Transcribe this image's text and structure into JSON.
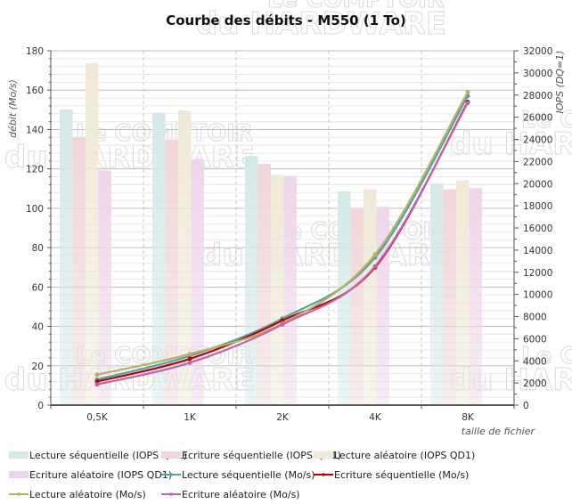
{
  "chart_data": {
    "type": "bar+line",
    "title": "Courbe des débits - M550 (1 To)",
    "xlabel": "taille de fichier",
    "ylabel": "débit (Mo/s)",
    "y2label": "IOPS (DQ=1)",
    "categories": [
      "0,5K",
      "1K",
      "2K",
      "4K",
      "8K"
    ],
    "ylim": [
      0,
      180
    ],
    "yticks": [
      0,
      20,
      40,
      60,
      80,
      100,
      120,
      140,
      160,
      180
    ],
    "y2lim": [
      0,
      32000
    ],
    "y2ticks": [
      0,
      2000,
      4000,
      6000,
      8000,
      10000,
      12000,
      14000,
      16000,
      18000,
      20000,
      22000,
      24000,
      26000,
      28000,
      30000,
      32000
    ],
    "grid": true,
    "legend": "bottom",
    "bar_series": [
      {
        "name": "Lecture séquentielle (IOPS QD1)",
        "axis": "right",
        "color": "#d3e9e8",
        "values": [
          26700,
          26400,
          22500,
          19300,
          20000
        ]
      },
      {
        "name": "Ecriture séquentielle (IOPS QD1)",
        "axis": "right",
        "color": "#f0d6d9",
        "values": [
          24200,
          24000,
          21800,
          17800,
          19500
        ]
      },
      {
        "name": "Lecture aléatoire (IOPS QD1)",
        "axis": "right",
        "color": "#eeead6",
        "values": [
          30900,
          26600,
          20800,
          19500,
          20300
        ]
      },
      {
        "name": "Ecriture aléatoire (IOPS QD1)",
        "axis": "right",
        "color": "#efd5eb",
        "values": [
          21200,
          22200,
          20700,
          17900,
          19600
        ]
      }
    ],
    "line_series": [
      {
        "name": "Lecture séquentielle (Mo/s)",
        "axis": "left",
        "color": "#4ea6a0",
        "values": [
          13,
          25,
          44,
          75,
          157
        ]
      },
      {
        "name": "Ecriture séquentielle (Mo/s)",
        "axis": "left",
        "color": "#c00000",
        "values": [
          12,
          23.5,
          43,
          70,
          154
        ]
      },
      {
        "name": "Lecture aléatoire (Mo/s)",
        "axis": "left",
        "color": "#b8b25c",
        "values": [
          15.5,
          26,
          41.5,
          76.5,
          159
        ]
      },
      {
        "name": "Ecriture aléatoire (Mo/s)",
        "axis": "left",
        "color": "#c461b4",
        "values": [
          10.5,
          21.5,
          41,
          70.5,
          153.5
        ]
      }
    ]
  },
  "watermark": {
    "line1": "Le COMPTOIR",
    "line2": "du HARDWARE"
  }
}
